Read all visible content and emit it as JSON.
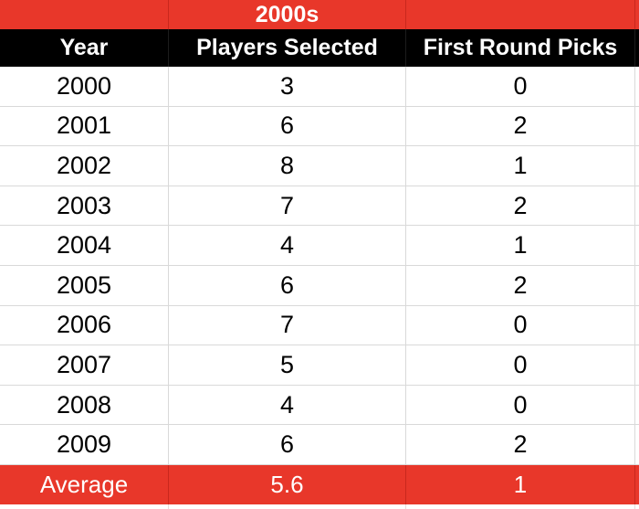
{
  "chart_data": {
    "type": "table",
    "title": "2000s",
    "columns": [
      "Year",
      "Players Selected",
      "First Round Picks"
    ],
    "rows": [
      [
        2000,
        3,
        0
      ],
      [
        2001,
        6,
        2
      ],
      [
        2002,
        8,
        1
      ],
      [
        2003,
        7,
        2
      ],
      [
        2004,
        4,
        1
      ],
      [
        2005,
        6,
        2
      ],
      [
        2006,
        7,
        0
      ],
      [
        2007,
        5,
        0
      ],
      [
        2008,
        4,
        0
      ],
      [
        2009,
        6,
        2
      ]
    ],
    "footer": [
      "Average",
      5.6,
      1
    ],
    "layout": "decade banner row (red), column header row (black), 10 data rows (white), average footer row (red)"
  },
  "table": {
    "decade_label": "2000s",
    "columns": [
      "Year",
      "Players Selected",
      "First Round Picks"
    ],
    "rows": [
      {
        "year": "2000",
        "players": "3",
        "picks": "0"
      },
      {
        "year": "2001",
        "players": "6",
        "picks": "2"
      },
      {
        "year": "2002",
        "players": "8",
        "picks": "1"
      },
      {
        "year": "2003",
        "players": "7",
        "picks": "2"
      },
      {
        "year": "2004",
        "players": "4",
        "picks": "1"
      },
      {
        "year": "2005",
        "players": "6",
        "picks": "2"
      },
      {
        "year": "2006",
        "players": "7",
        "picks": "0"
      },
      {
        "year": "2007",
        "players": "5",
        "picks": "0"
      },
      {
        "year": "2008",
        "players": "4",
        "picks": "0"
      },
      {
        "year": "2009",
        "players": "6",
        "picks": "2"
      }
    ],
    "footer": {
      "label": "Average",
      "players": "5.6",
      "picks": "1"
    }
  },
  "colors": {
    "accent_red": "#E8372A",
    "red_divider": "#C9281D",
    "header_black": "#000000",
    "grid_line": "#D9D9D9",
    "text_on_dark": "#FFFFFF",
    "text_on_light": "#000000"
  }
}
